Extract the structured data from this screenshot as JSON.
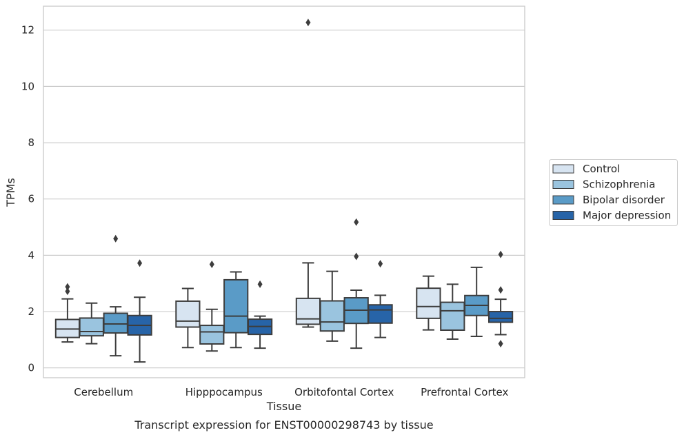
{
  "chart_data": {
    "type": "box",
    "title": "",
    "caption": "Transcript expression for ENST00000298743 by tissue",
    "xlabel": "Tissue",
    "ylabel": "TPMs",
    "ylim": [
      -0.35,
      12.85
    ],
    "yticks": [
      0,
      2,
      4,
      6,
      8,
      10,
      12
    ],
    "grid": "horizontal",
    "legend_position": "right",
    "categories": [
      "Cerebellum",
      "Hipppocampus",
      "Orbitofontal Cortex",
      "Prefrontal Cortex"
    ],
    "series": [
      {
        "name": "Control",
        "color": "#d7e4f1",
        "boxes": [
          {
            "whislo": 0.92,
            "q1": 1.08,
            "med": 1.38,
            "q3": 1.72,
            "whishi": 2.45,
            "fliers": [
              2.72,
              2.88
            ]
          },
          {
            "whislo": 0.72,
            "q1": 1.45,
            "med": 1.66,
            "q3": 2.37,
            "whishi": 2.82,
            "fliers": []
          },
          {
            "whislo": 1.45,
            "q1": 1.55,
            "med": 1.74,
            "q3": 2.47,
            "whishi": 3.73,
            "fliers": [
              12.27
            ]
          },
          {
            "whislo": 1.35,
            "q1": 1.76,
            "med": 2.18,
            "q3": 2.83,
            "whishi": 3.26,
            "fliers": []
          }
        ]
      },
      {
        "name": "Schizophrenia",
        "color": "#9ac4df",
        "boxes": [
          {
            "whislo": 0.86,
            "q1": 1.14,
            "med": 1.29,
            "q3": 1.77,
            "whishi": 2.3,
            "fliers": []
          },
          {
            "whislo": 0.6,
            "q1": 0.85,
            "med": 1.28,
            "q3": 1.51,
            "whishi": 2.08,
            "fliers": [
              3.68
            ]
          },
          {
            "whislo": 0.95,
            "q1": 1.31,
            "med": 1.63,
            "q3": 2.38,
            "whishi": 3.43,
            "fliers": []
          },
          {
            "whislo": 1.02,
            "q1": 1.34,
            "med": 2.03,
            "q3": 2.33,
            "whishi": 2.97,
            "fliers": []
          }
        ]
      },
      {
        "name": "Bipolar disorder",
        "color": "#5a9bc7",
        "boxes": [
          {
            "whislo": 0.43,
            "q1": 1.24,
            "med": 1.56,
            "q3": 1.94,
            "whishi": 2.17,
            "fliers": [
              4.59
            ]
          },
          {
            "whislo": 0.72,
            "q1": 1.25,
            "med": 1.84,
            "q3": 3.13,
            "whishi": 3.41,
            "fliers": []
          },
          {
            "whislo": 0.7,
            "q1": 1.58,
            "med": 2.05,
            "q3": 2.49,
            "whishi": 2.76,
            "fliers": [
              3.96,
              5.18
            ]
          },
          {
            "whislo": 1.12,
            "q1": 1.86,
            "med": 2.22,
            "q3": 2.57,
            "whishi": 3.57,
            "fliers": []
          }
        ]
      },
      {
        "name": "Major depression",
        "color": "#2764a8",
        "boxes": [
          {
            "whislo": 0.21,
            "q1": 1.17,
            "med": 1.51,
            "q3": 1.86,
            "whishi": 2.51,
            "fliers": [
              3.72
            ]
          },
          {
            "whislo": 0.7,
            "q1": 1.19,
            "med": 1.47,
            "q3": 1.73,
            "whishi": 1.84,
            "fliers": [
              2.97
            ]
          },
          {
            "whislo": 1.08,
            "q1": 1.59,
            "med": 2.06,
            "q3": 2.24,
            "whishi": 2.58,
            "fliers": [
              3.7
            ]
          },
          {
            "whislo": 1.18,
            "q1": 1.62,
            "med": 1.76,
            "q3": 2.0,
            "whishi": 2.44,
            "fliers": [
              0.86,
              2.77,
              4.03
            ]
          }
        ]
      }
    ]
  }
}
